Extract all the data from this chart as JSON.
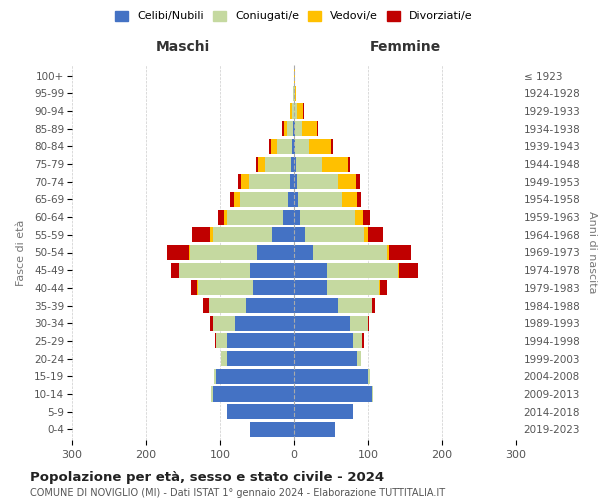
{
  "age_groups": [
    "0-4",
    "5-9",
    "10-14",
    "15-19",
    "20-24",
    "25-29",
    "30-34",
    "35-39",
    "40-44",
    "45-49",
    "50-54",
    "55-59",
    "60-64",
    "65-69",
    "70-74",
    "75-79",
    "80-84",
    "85-89",
    "90-94",
    "95-99",
    "100+"
  ],
  "birth_years": [
    "2019-2023",
    "2014-2018",
    "2009-2013",
    "2004-2008",
    "1999-2003",
    "1994-1998",
    "1989-1993",
    "1984-1988",
    "1979-1983",
    "1974-1978",
    "1969-1973",
    "1964-1968",
    "1959-1963",
    "1954-1958",
    "1949-1953",
    "1944-1948",
    "1939-1943",
    "1934-1938",
    "1929-1933",
    "1924-1928",
    "≤ 1923"
  ],
  "male_celibi": [
    60,
    90,
    110,
    105,
    90,
    90,
    80,
    65,
    55,
    60,
    50,
    30,
    15,
    8,
    6,
    4,
    3,
    1,
    0,
    0,
    0
  ],
  "male_coniugati": [
    0,
    0,
    2,
    3,
    8,
    15,
    30,
    50,
    75,
    95,
    90,
    80,
    75,
    65,
    55,
    35,
    20,
    8,
    3,
    1,
    0
  ],
  "male_vedovi": [
    0,
    0,
    0,
    0,
    0,
    0,
    0,
    0,
    1,
    1,
    2,
    3,
    5,
    8,
    10,
    10,
    8,
    4,
    2,
    0,
    0
  ],
  "male_divorziati": [
    0,
    0,
    0,
    0,
    0,
    2,
    3,
    8,
    8,
    10,
    30,
    25,
    8,
    5,
    5,
    3,
    3,
    3,
    1,
    0,
    0
  ],
  "female_celibi": [
    55,
    80,
    105,
    100,
    85,
    80,
    75,
    60,
    45,
    45,
    25,
    15,
    8,
    5,
    4,
    3,
    2,
    1,
    0,
    0,
    0
  ],
  "female_coniugati": [
    0,
    0,
    2,
    3,
    6,
    12,
    25,
    45,
    70,
    95,
    100,
    80,
    75,
    60,
    55,
    35,
    18,
    10,
    4,
    1,
    0
  ],
  "female_vedovi": [
    0,
    0,
    0,
    0,
    0,
    0,
    0,
    0,
    1,
    2,
    3,
    5,
    10,
    20,
    25,
    35,
    30,
    20,
    8,
    2,
    1
  ],
  "female_divorziati": [
    0,
    0,
    0,
    0,
    0,
    2,
    2,
    5,
    10,
    25,
    30,
    20,
    10,
    5,
    5,
    3,
    3,
    2,
    1,
    0,
    0
  ],
  "colors": {
    "celibi": "#4472c4",
    "coniugati": "#c5d9a0",
    "vedovi": "#ffc000",
    "divorziati": "#c00000"
  },
  "legend_labels": [
    "Celibi/Nubili",
    "Coniugati/e",
    "Vedovi/e",
    "Divorziati/e"
  ],
  "title": "Popolazione per età, sesso e stato civile - 2024",
  "subtitle": "COMUNE DI NOVIGLIO (MI) - Dati ISTAT 1° gennaio 2024 - Elaborazione TUTTITALIA.IT",
  "ylabel_left": "Fasce di età",
  "ylabel_right": "Anni di nascita",
  "xlabel_left": "Maschi",
  "xlabel_right": "Femmine",
  "xlim": 300,
  "bg_color": "#ffffff",
  "grid_color": "#cccccc"
}
